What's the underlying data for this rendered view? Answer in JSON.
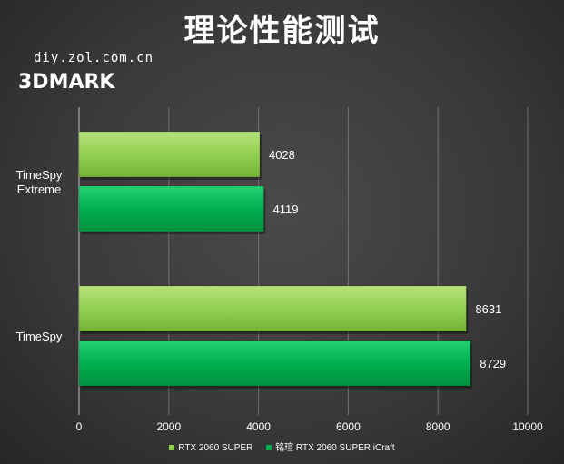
{
  "header": {
    "title": "理论性能测试",
    "source": "diy.zol.com.cn",
    "subtitle": "3DMARK"
  },
  "chart_data": {
    "type": "bar",
    "orientation": "horizontal",
    "categories": [
      "TimeSpy Extreme",
      "TimeSpy"
    ],
    "category_lines": [
      [
        "TimeSpy",
        "Extreme"
      ],
      [
        "TimeSpy"
      ]
    ],
    "series": [
      {
        "name": "RTX 2060 SUPER",
        "color": "#92d050",
        "values": [
          4028,
          8631
        ]
      },
      {
        "name": "铭瑄 RTX 2060 SUPER iCraft",
        "color": "#00b050",
        "values": [
          4119,
          8729
        ]
      }
    ],
    "xlim": [
      0,
      10000
    ],
    "xticks": [
      0,
      2000,
      4000,
      6000,
      8000,
      10000
    ],
    "grid": true,
    "legend_position": "bottom"
  }
}
